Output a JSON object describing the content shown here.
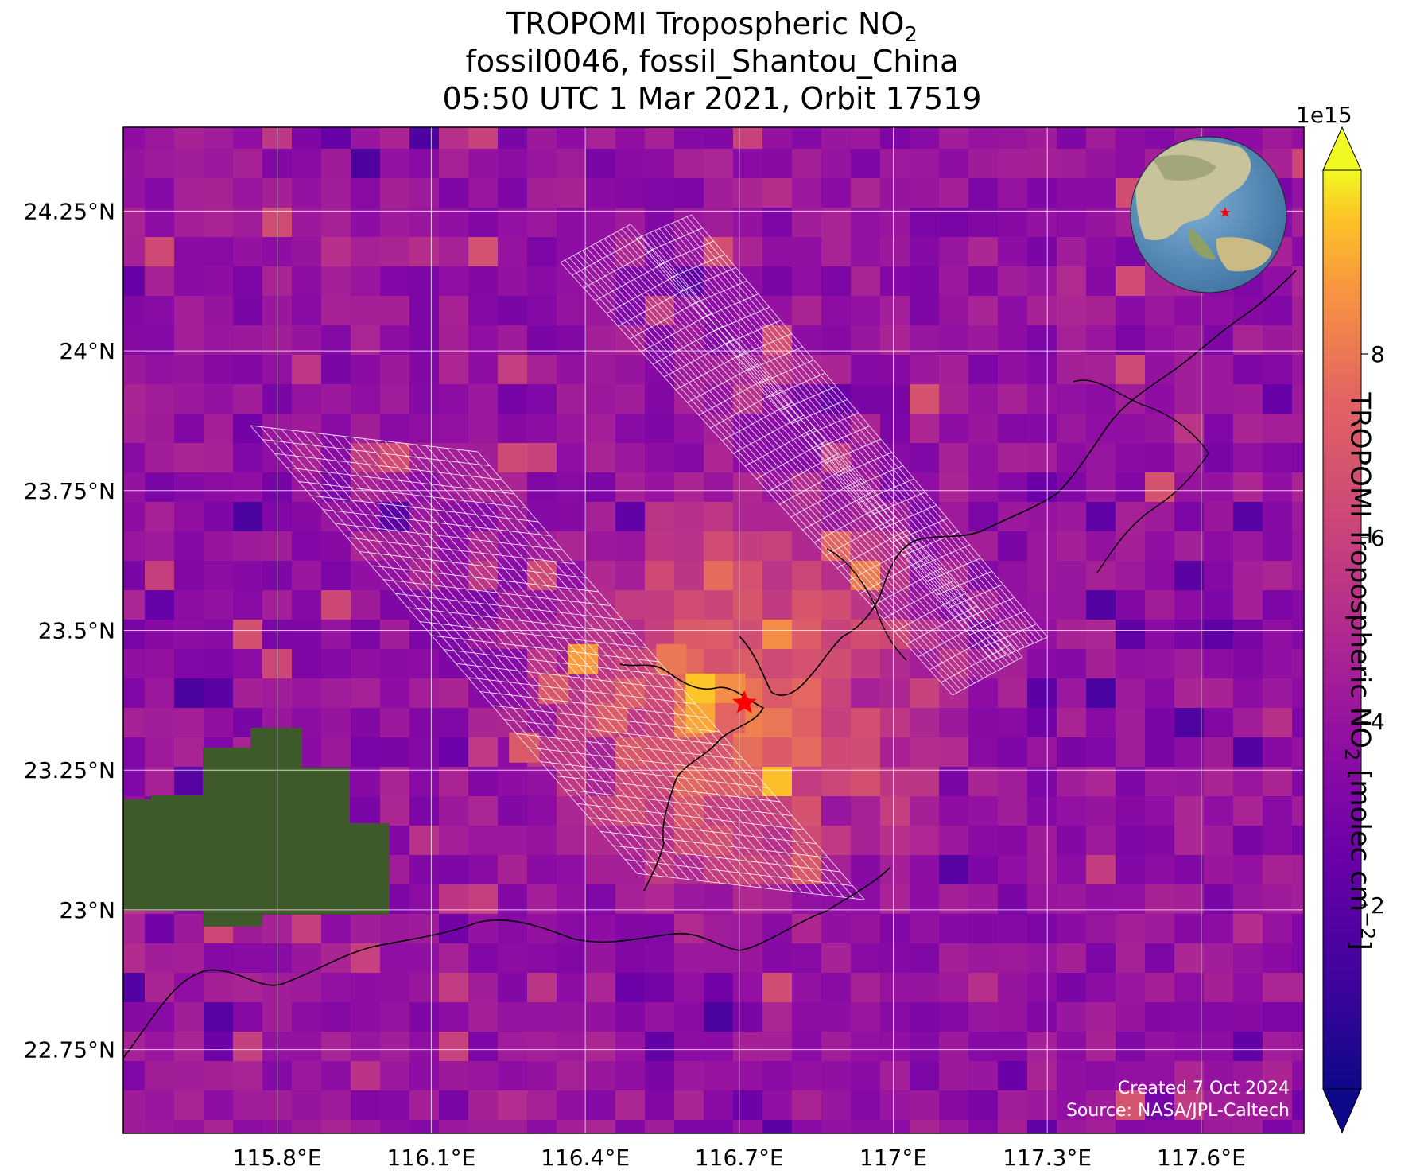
{
  "title": {
    "line1_main": "TROPOMI Tropospheric NO",
    "line1_sub": "2",
    "line2": "fossil0046, fossil_Shantou_China",
    "line3": "05:50 UTC 1 Mar 2021, Orbit 17519"
  },
  "map": {
    "lon_range": [
      115.5,
      117.8
    ],
    "lat_range": [
      22.6,
      24.4
    ],
    "lon_ticks": [
      115.8,
      116.1,
      116.4,
      116.7,
      117.0,
      117.3,
      117.6
    ],
    "lon_tick_labels": [
      "115.8°E",
      "116.1°E",
      "116.4°E",
      "116.7°E",
      "117°E",
      "117.3°E",
      "117.6°E"
    ],
    "lat_ticks": [
      24.25,
      24.0,
      23.75,
      23.5,
      23.25,
      23.0,
      22.75
    ],
    "lat_tick_labels": [
      "24.25°N",
      "24°N",
      "23.75°N",
      "23.5°N",
      "23.25°N",
      "23°N",
      "22.75°N"
    ],
    "site_marker": {
      "lon": 116.71,
      "lat": 23.37,
      "color": "#ff0000",
      "symbol": "star"
    },
    "grid": true,
    "colormap": "plasma"
  },
  "colorbar": {
    "label_main": "TROPOMI Tropospheric NO",
    "label_sub": "2",
    "label_units": " [molec cm",
    "label_sup": "−2",
    "label_end": "]",
    "exponent": "1e15",
    "ticks": [
      2,
      4,
      6,
      8
    ],
    "tick_labels": [
      "2",
      "4",
      "6",
      "8"
    ],
    "range": [
      0,
      10
    ],
    "extend": "both"
  },
  "credits": {
    "line1": "Created 7 Oct 2024",
    "line2": "Source: NASA/JPL-Caltech"
  },
  "inset": {
    "type": "globe",
    "marker_color": "#ff0000"
  }
}
